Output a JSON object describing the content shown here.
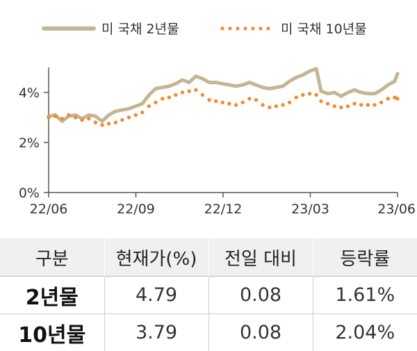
{
  "chart_data": {
    "type": "line",
    "x_ticks": [
      "22/06",
      "22/09",
      "22/12",
      "23/03",
      "23/06"
    ],
    "y_ticks": [
      "0%",
      "2%",
      "4%"
    ],
    "ylim": [
      0,
      5
    ],
    "grid": false,
    "legend_position": "top",
    "series": [
      {
        "name": "미 국채 2년물",
        "color": "#c4b594",
        "style": "solid",
        "x": [
          "2022-06-01",
          "2022-06-08",
          "2022-06-15",
          "2022-06-22",
          "2022-06-29",
          "2022-07-06",
          "2022-07-13",
          "2022-07-20",
          "2022-07-27",
          "2022-08-03",
          "2022-08-10",
          "2022-08-17",
          "2022-08-24",
          "2022-08-31",
          "2022-09-07",
          "2022-09-14",
          "2022-09-21",
          "2022-09-28",
          "2022-10-05",
          "2022-10-12",
          "2022-10-19",
          "2022-10-26",
          "2022-11-02",
          "2022-11-09",
          "2022-11-16",
          "2022-11-23",
          "2022-11-30",
          "2022-12-07",
          "2022-12-14",
          "2022-12-21",
          "2022-12-28",
          "2023-01-04",
          "2023-01-11",
          "2023-01-18",
          "2023-01-25",
          "2023-02-01",
          "2023-02-08",
          "2023-02-15",
          "2023-02-22",
          "2023-03-01",
          "2023-03-08",
          "2023-03-13",
          "2023-03-20",
          "2023-03-27",
          "2023-04-03",
          "2023-04-10",
          "2023-04-17",
          "2023-04-24",
          "2023-05-01",
          "2023-05-08",
          "2023-05-15",
          "2023-05-22",
          "2023-05-29",
          "2023-06-01"
        ],
        "values": [
          3.05,
          3.1,
          2.85,
          3.05,
          3.1,
          2.95,
          3.1,
          3.05,
          2.85,
          3.1,
          3.25,
          3.3,
          3.35,
          3.45,
          3.55,
          3.9,
          4.15,
          4.2,
          4.25,
          4.35,
          4.5,
          4.4,
          4.65,
          4.55,
          4.4,
          4.4,
          4.35,
          4.3,
          4.25,
          4.3,
          4.4,
          4.3,
          4.2,
          4.15,
          4.2,
          4.25,
          4.45,
          4.6,
          4.7,
          4.85,
          4.95,
          4.05,
          3.95,
          4.0,
          3.85,
          4.0,
          4.1,
          4.0,
          3.95,
          3.95,
          4.1,
          4.3,
          4.45,
          4.75
        ]
      },
      {
        "name": "미 국채 10년물",
        "color": "#f28a2e",
        "style": "dotted",
        "x": [
          "2022-06-01",
          "2022-06-08",
          "2022-06-15",
          "2022-06-22",
          "2022-06-29",
          "2022-07-06",
          "2022-07-13",
          "2022-07-20",
          "2022-07-27",
          "2022-08-03",
          "2022-08-10",
          "2022-08-17",
          "2022-08-24",
          "2022-08-31",
          "2022-09-07",
          "2022-09-14",
          "2022-09-21",
          "2022-09-28",
          "2022-10-05",
          "2022-10-12",
          "2022-10-19",
          "2022-10-26",
          "2022-11-02",
          "2022-11-09",
          "2022-11-16",
          "2022-11-23",
          "2022-11-30",
          "2022-12-07",
          "2022-12-14",
          "2022-12-21",
          "2022-12-28",
          "2023-01-04",
          "2023-01-11",
          "2023-01-18",
          "2023-01-25",
          "2023-02-01",
          "2023-02-08",
          "2023-02-15",
          "2023-02-22",
          "2023-03-01",
          "2023-03-08",
          "2023-03-13",
          "2023-03-20",
          "2023-03-27",
          "2023-04-03",
          "2023-04-10",
          "2023-04-17",
          "2023-04-24",
          "2023-05-01",
          "2023-05-08",
          "2023-05-15",
          "2023-05-22",
          "2023-05-29",
          "2023-06-01"
        ],
        "values": [
          3.0,
          3.05,
          2.95,
          3.1,
          3.0,
          2.9,
          2.95,
          2.8,
          2.7,
          2.75,
          2.8,
          2.9,
          3.0,
          3.1,
          3.2,
          3.45,
          3.6,
          3.75,
          3.8,
          3.9,
          4.0,
          4.05,
          4.1,
          3.9,
          3.7,
          3.65,
          3.6,
          3.55,
          3.5,
          3.6,
          3.75,
          3.7,
          3.5,
          3.4,
          3.45,
          3.5,
          3.6,
          3.8,
          3.9,
          3.95,
          3.9,
          3.65,
          3.55,
          3.45,
          3.4,
          3.45,
          3.55,
          3.5,
          3.5,
          3.5,
          3.6,
          3.75,
          3.8,
          3.75
        ]
      }
    ]
  },
  "table": {
    "headers": [
      "구분",
      "현재가(%)",
      "전일 대비",
      "등락률"
    ],
    "rows": [
      {
        "name": "2년물",
        "price": "4.79",
        "change": "0.08",
        "rate": "1.61%"
      },
      {
        "name": "10년물",
        "price": "3.79",
        "change": "0.08",
        "rate": "2.04%"
      }
    ]
  }
}
